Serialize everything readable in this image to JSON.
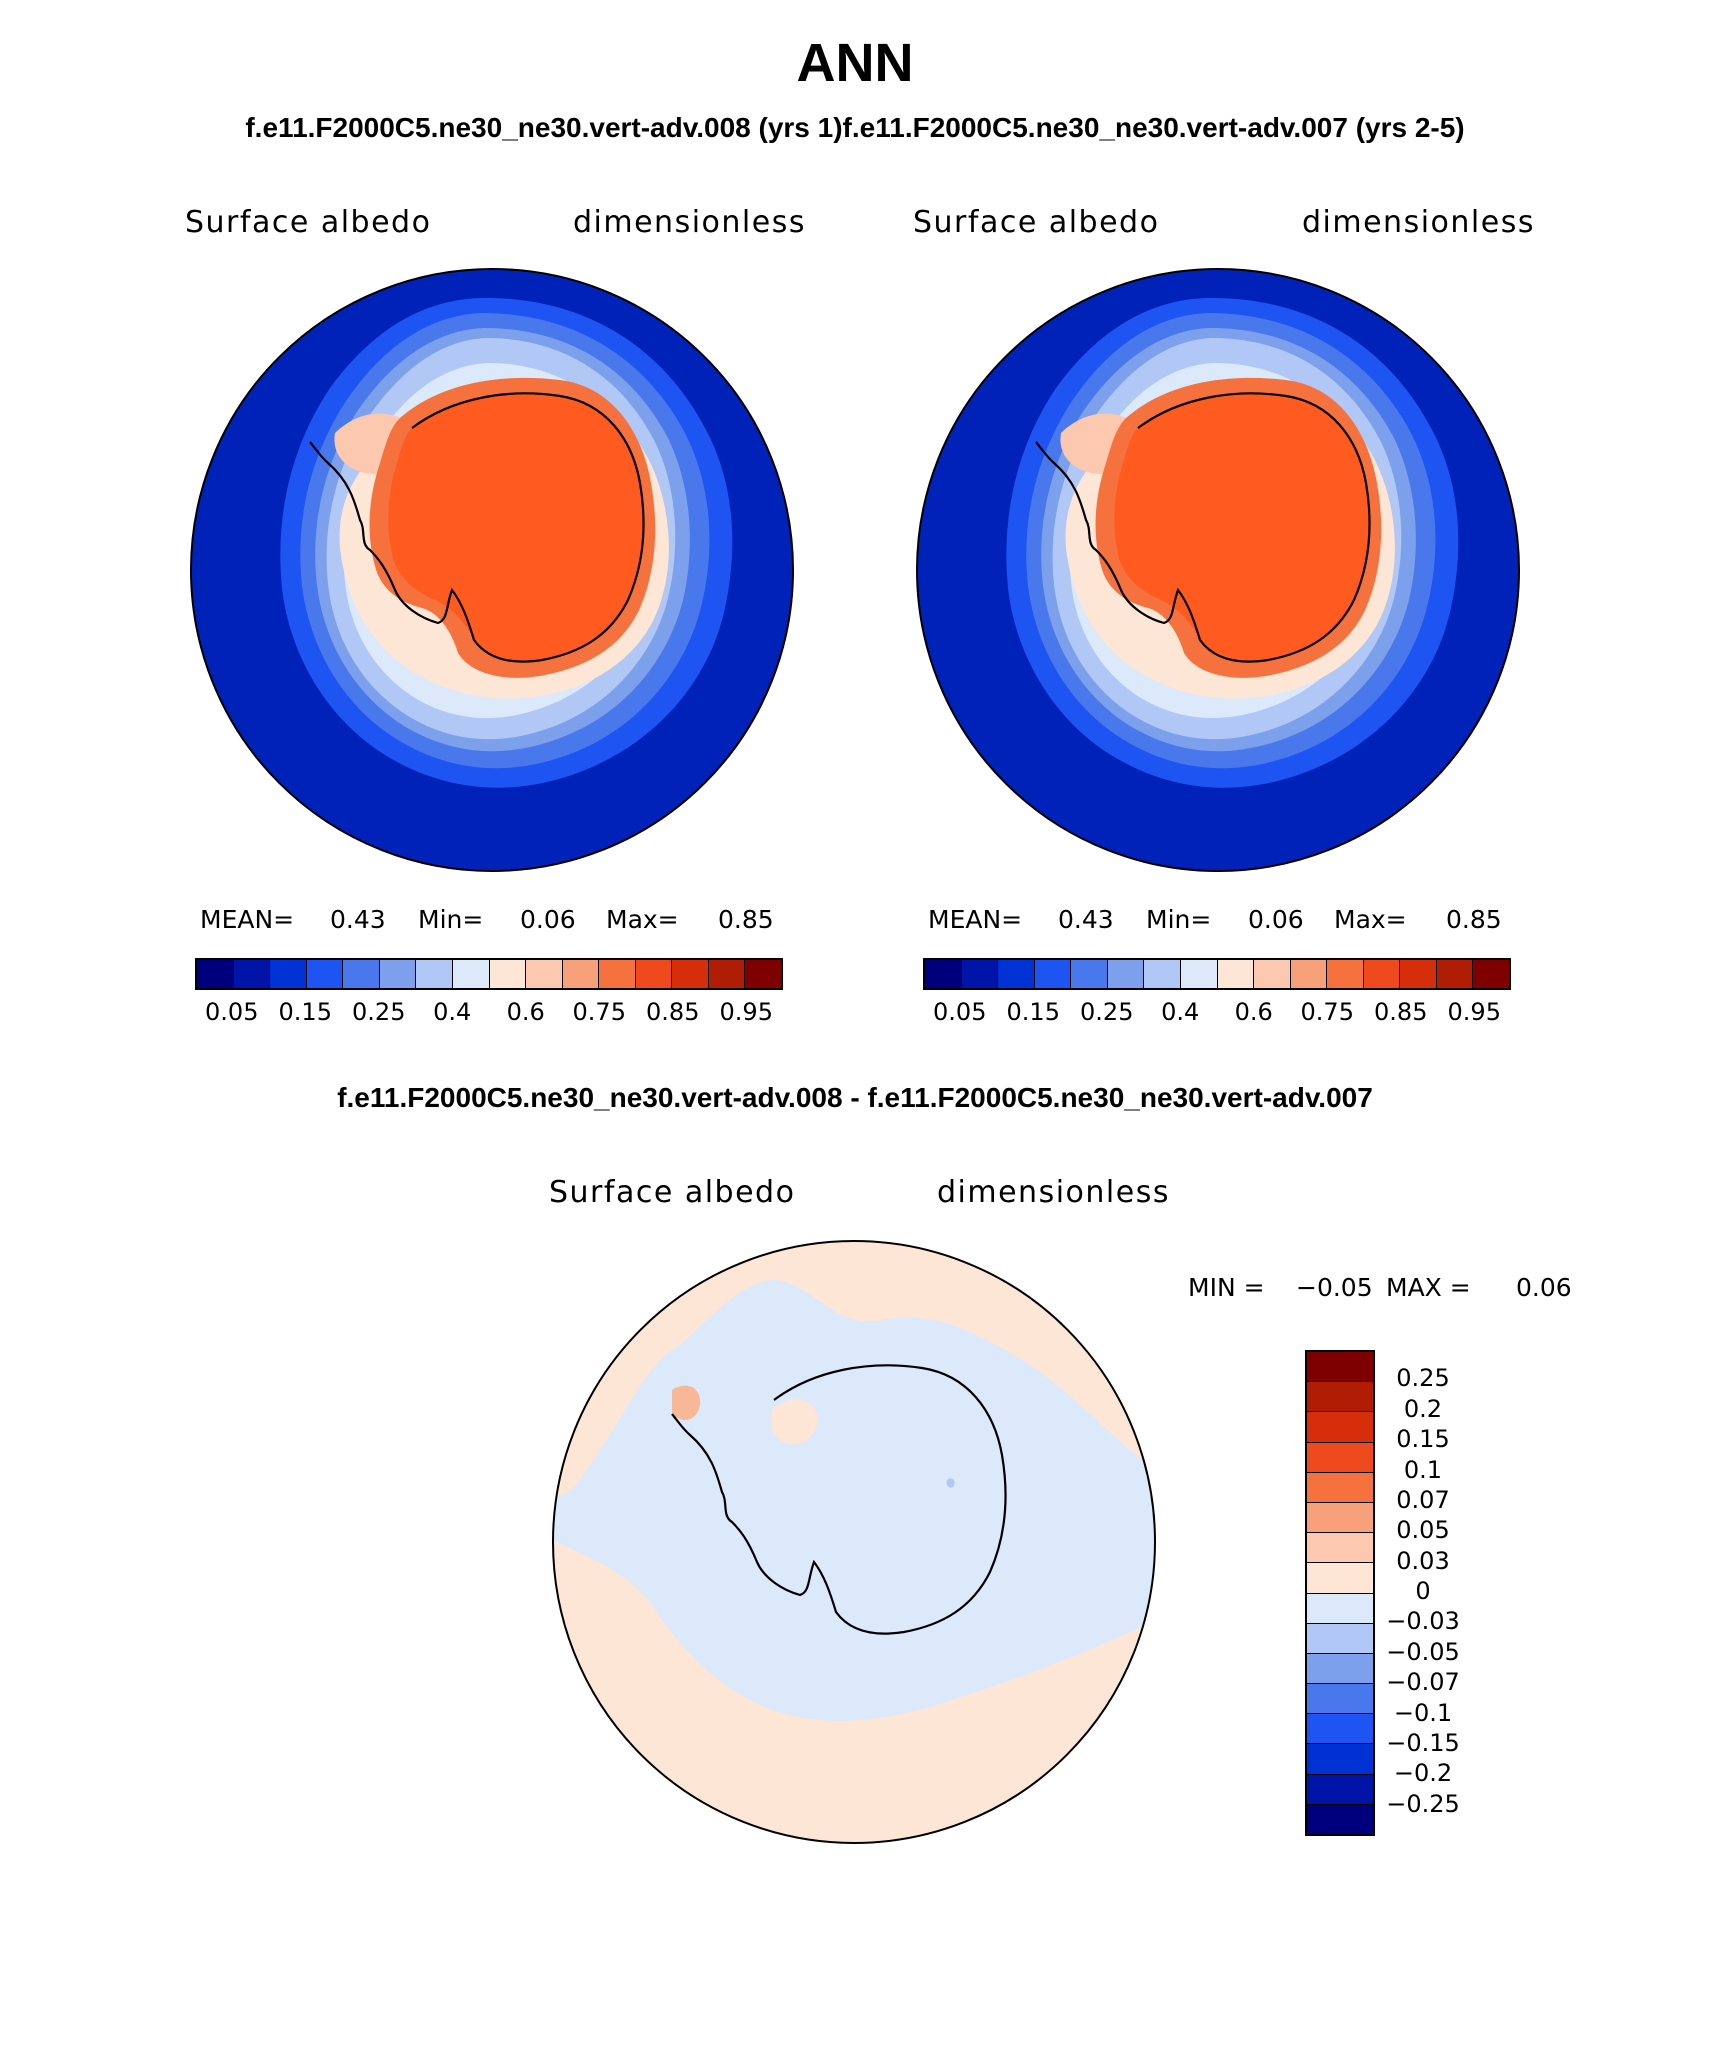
{
  "title": "ANN",
  "subtitle_top": "f.e11.F2000C5.ne30_ne30.vert-adv.008 (yrs 1)f.e11.F2000C5.ne30_ne30.vert-adv.007 (yrs 2-5)",
  "subtitle_diff": "f.e11.F2000C5.ne30_ne30.vert-adv.008 - f.e11.F2000C5.ne30_ne30.vert-adv.007",
  "panels": [
    {
      "variable": "Surface albedo",
      "units": "dimensionless",
      "mean_label": "MEAN=",
      "mean": "0.43",
      "min_label": "Min=",
      "min": "0.06",
      "max_label": "Max=",
      "max": "0.85"
    },
    {
      "variable": "Surface albedo",
      "units": "dimensionless",
      "mean_label": "MEAN=",
      "mean": "0.43",
      "min_label": "Min=",
      "min": "0.06",
      "max_label": "Max=",
      "max": "0.85"
    }
  ],
  "diff_panel": {
    "variable": "Surface albedo",
    "units": "dimensionless",
    "min_label": "MIN =",
    "min": "−0.05",
    "max_label": "MAX =",
    "max": "0.06"
  },
  "colorbar_top": {
    "colors": [
      "#00007f",
      "#0015a8",
      "#0031d4",
      "#1e54f2",
      "#4878ec",
      "#7da0ec",
      "#b1c8f6",
      "#dbe9fb",
      "#fde6d6",
      "#fcc8b0",
      "#f8a07a",
      "#f5723f",
      "#ef4a1e",
      "#d62e0a",
      "#b01c04",
      "#7f0000"
    ],
    "labels": [
      "0.05",
      "0.15",
      "0.25",
      "0.4",
      "0.6",
      "0.75",
      "0.85",
      "0.95"
    ]
  },
  "colorbar_diff": {
    "colors": [
      "#7f0000",
      "#b01c04",
      "#d62e0a",
      "#ef4a1e",
      "#f5723f",
      "#f8a07a",
      "#fcc8b0",
      "#fde6d6",
      "#dbe9fb",
      "#b1c8f6",
      "#7da0ec",
      "#4878ec",
      "#1e54f2",
      "#0031d4",
      "#0015a8",
      "#00007f"
    ],
    "labels": [
      "0.25",
      "0.2",
      "0.15",
      "0.1",
      "0.07",
      "0.05",
      "0.03",
      "0",
      "−0.03",
      "−0.05",
      "−0.07",
      "−0.1",
      "−0.15",
      "−0.2",
      "−0.25"
    ]
  },
  "map_colors": {
    "ocean_deep": "#0022b8",
    "ring1": "#1e54f2",
    "ring2": "#4878ec",
    "ring3": "#7da0ec",
    "ring4": "#b1c8f6",
    "ring5": "#dbe9fb",
    "shelf": "#fde6d6",
    "shelf2": "#fcc8b0",
    "coast_band": "#f5723f",
    "ice": "#ff5a1f",
    "diff_blue": "#dbe9fb",
    "diff_peach": "#fde6d6",
    "diff_pos": "#f8b898",
    "diff_neg": "#b1c8f6"
  }
}
